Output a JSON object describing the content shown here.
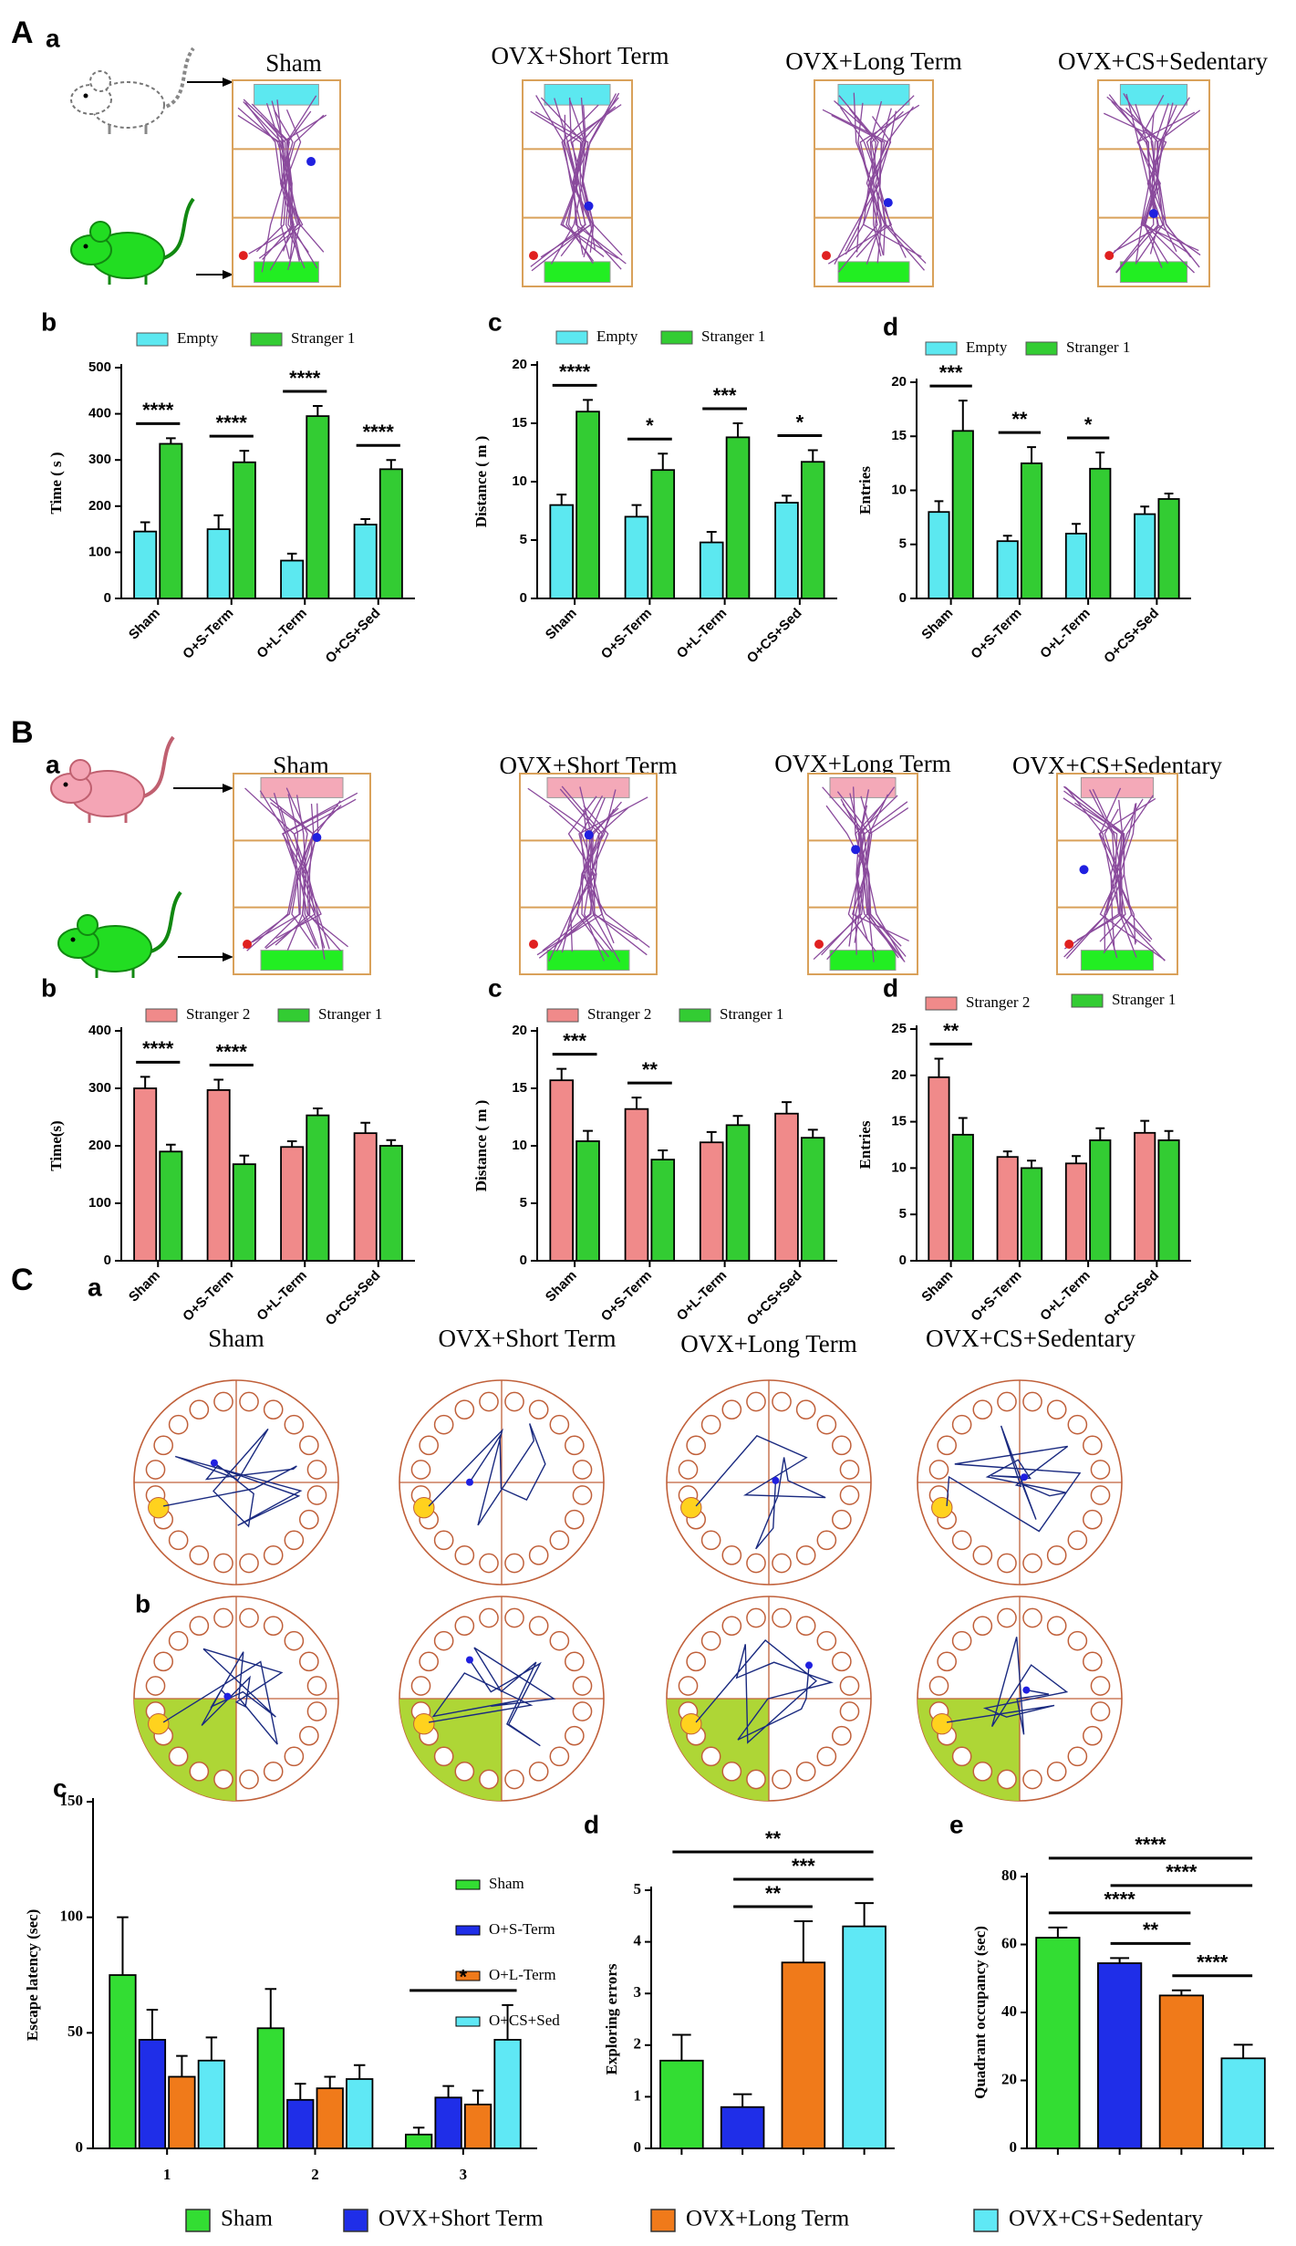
{
  "figure": {
    "sections": [
      {
        "label": "A",
        "sub": "a",
        "titles": [
          "Sham",
          "OVX+Short Term",
          "OVX+Long Term",
          "OVX+CS+Sedentary"
        ]
      },
      {
        "label": "B",
        "sub": "a",
        "titles": [
          "Sham",
          "OVX+Short Term",
          "OVX+Long Term",
          "OVX+CS+Sedentary"
        ]
      },
      {
        "label": "C",
        "sub": "a",
        "sub2": "b",
        "titles": [
          "Sham",
          "OVX+Short Term",
          "OVX+Long Term",
          "OVX+CS+Sedentary"
        ]
      }
    ],
    "legend": [
      {
        "label": "Sham",
        "color": "#33dd33"
      },
      {
        "label": "OVX+Short Term",
        "color": "#1f2ee8"
      },
      {
        "label": "OVX+Long Term",
        "color": "#f07a1a"
      },
      {
        "label": "OVX+CS+Sedentary",
        "color": "#5fe8f5"
      }
    ]
  },
  "chart_data": [
    {
      "type": "bar",
      "panel": "b",
      "ylabel": "Time ( s )",
      "categories": [
        "Sham",
        "O+S-Term",
        "O+L-Term",
        "O+CS+Sed"
      ],
      "series": [
        {
          "name": "Empty",
          "color": "#5ce8f0",
          "values": [
            145,
            150,
            82,
            160
          ],
          "errors": [
            20,
            30,
            15,
            12
          ]
        },
        {
          "name": "Stranger 1",
          "color": "#33cc33",
          "values": [
            335,
            295,
            395,
            280
          ],
          "errors": [
            12,
            25,
            22,
            20
          ]
        }
      ],
      "ylim": [
        0,
        500
      ],
      "yticks": [
        0,
        100,
        200,
        300,
        400,
        500
      ],
      "annotations": [
        {
          "text": "****",
          "category": 0
        },
        {
          "text": "****",
          "category": 1
        },
        {
          "text": "****",
          "category": 2
        },
        {
          "text": "****",
          "category": 3
        }
      ]
    },
    {
      "type": "bar",
      "panel": "c",
      "ylabel": "Distance ( m )",
      "categories": [
        "Sham",
        "O+S-Term",
        "O+L-Term",
        "O+CS+Sed"
      ],
      "series": [
        {
          "name": "Empty",
          "color": "#5ce8f0",
          "values": [
            8,
            7,
            4.8,
            8.2
          ],
          "errors": [
            0.9,
            1,
            0.9,
            0.6
          ]
        },
        {
          "name": "Stranger 1",
          "color": "#33cc33",
          "values": [
            16,
            11,
            13.8,
            11.7
          ],
          "errors": [
            1,
            1.4,
            1.2,
            1
          ]
        }
      ],
      "ylim": [
        0,
        20
      ],
      "yticks": [
        0,
        5,
        10,
        15,
        20
      ],
      "annotations": [
        {
          "text": "****",
          "category": 0
        },
        {
          "text": "*",
          "category": 1
        },
        {
          "text": "***",
          "category": 2
        },
        {
          "text": "*",
          "category": 3
        }
      ]
    },
    {
      "type": "bar",
      "panel": "d",
      "ylabel": "Entries",
      "categories": [
        "Sham",
        "O+S-Term",
        "O+L-Term",
        "O+CS+Sed"
      ],
      "series": [
        {
          "name": "Empty",
          "color": "#5ce8f0",
          "values": [
            8,
            5.3,
            6,
            7.8
          ],
          "errors": [
            1,
            0.5,
            0.9,
            0.7
          ]
        },
        {
          "name": "Stranger 1",
          "color": "#33cc33",
          "values": [
            15.5,
            12.5,
            12,
            9.2
          ],
          "errors": [
            2.8,
            1.5,
            1.5,
            0.5
          ]
        }
      ],
      "ylim": [
        0,
        20
      ],
      "yticks": [
        0,
        5,
        10,
        15,
        20
      ],
      "annotations": [
        {
          "text": "***",
          "category": 0
        },
        {
          "text": "**",
          "category": 1
        },
        {
          "text": "*",
          "category": 2
        }
      ]
    },
    {
      "type": "bar",
      "panel": "b",
      "ylabel": "Time(s)",
      "categories": [
        "Sham",
        "O+S-Term",
        "O+L-Term",
        "O+CS+Sed"
      ],
      "series": [
        {
          "name": "Stranger 2",
          "color": "#f08a8a",
          "values": [
            300,
            297,
            198,
            222
          ],
          "errors": [
            20,
            18,
            10,
            18
          ]
        },
        {
          "name": "Stranger 1",
          "color": "#33cc33",
          "values": [
            190,
            168,
            253,
            200
          ],
          "errors": [
            12,
            15,
            12,
            10
          ]
        }
      ],
      "ylim": [
        0,
        400
      ],
      "yticks": [
        0,
        100,
        200,
        300,
        400
      ],
      "annotations": [
        {
          "text": "****",
          "category": 0
        },
        {
          "text": "****",
          "category": 1
        }
      ]
    },
    {
      "type": "bar",
      "panel": "c",
      "ylabel": "Distance ( m )",
      "categories": [
        "Sham",
        "O+S-Term",
        "O+L-Term",
        "O+CS+Sed"
      ],
      "series": [
        {
          "name": "Stranger 2",
          "color": "#f08a8a",
          "values": [
            15.7,
            13.2,
            10.3,
            12.8
          ],
          "errors": [
            1,
            1,
            0.9,
            1
          ]
        },
        {
          "name": "Stranger 1",
          "color": "#33cc33",
          "values": [
            10.4,
            8.8,
            11.8,
            10.7
          ],
          "errors": [
            0.9,
            0.8,
            0.8,
            0.7
          ]
        }
      ],
      "ylim": [
        0,
        20
      ],
      "yticks": [
        0,
        5,
        10,
        15,
        20
      ],
      "annotations": [
        {
          "text": "***",
          "category": 0
        },
        {
          "text": "**",
          "category": 1
        }
      ]
    },
    {
      "type": "bar",
      "panel": "d",
      "ylabel": "Entries",
      "categories": [
        "Sham",
        "O+S-Term",
        "O+L-Term",
        "O+CS+Sed"
      ],
      "series": [
        {
          "name": "Stranger 2",
          "color": "#f08a8a",
          "values": [
            19.8,
            11.2,
            10.5,
            13.8
          ],
          "errors": [
            2,
            0.6,
            0.8,
            1.3
          ]
        },
        {
          "name": "Stranger 1",
          "color": "#33cc33",
          "values": [
            13.6,
            10,
            13,
            13
          ],
          "errors": [
            1.8,
            0.8,
            1.3,
            1
          ]
        }
      ],
      "ylim": [
        0,
        25
      ],
      "yticks": [
        0,
        5,
        10,
        15,
        20,
        25
      ],
      "annotations": [
        {
          "text": "**",
          "category": 0
        }
      ]
    },
    {
      "type": "bar",
      "panel": "c",
      "ylabel": "Escape latency (sec)",
      "categories": [
        "1",
        "2",
        "3"
      ],
      "series": [
        {
          "name": "Sham",
          "color": "#33dd33",
          "values": [
            75,
            52,
            6
          ],
          "errors": [
            25,
            17,
            3
          ]
        },
        {
          "name": "O+S-Term",
          "color": "#1f2ee8",
          "values": [
            47,
            21,
            22
          ],
          "errors": [
            13,
            7,
            5
          ]
        },
        {
          "name": "O+L-Term",
          "color": "#f07a1a",
          "values": [
            31,
            26,
            19
          ],
          "errors": [
            9,
            5,
            6
          ]
        },
        {
          "name": "O+CS+Sed",
          "color": "#5fe8f5",
          "values": [
            38,
            30,
            47
          ],
          "errors": [
            10,
            6,
            15
          ]
        }
      ],
      "ylim": [
        0,
        150
      ],
      "yticks": [
        0,
        50,
        100,
        150
      ],
      "annotations": [
        {
          "text": "*",
          "category": 2
        }
      ]
    },
    {
      "type": "bar",
      "panel": "d",
      "ylabel": "Exploring errors",
      "categories": [
        null,
        null,
        null,
        null
      ],
      "values": [
        1.7,
        0.8,
        3.6,
        4.3
      ],
      "errors": [
        0.5,
        0.25,
        0.8,
        0.45
      ],
      "colors": [
        "#33dd33",
        "#1f2ee8",
        "#f07a1a",
        "#5fe8f5"
      ],
      "ylim": [
        0,
        5
      ],
      "yticks": [
        0,
        1,
        2,
        3,
        4,
        5
      ],
      "annotations": [
        {
          "text": "**",
          "from": 0,
          "to": 3
        },
        {
          "text": "***",
          "from": 1,
          "to": 3
        },
        {
          "text": "**",
          "from": 1,
          "to": 2
        }
      ]
    },
    {
      "type": "bar",
      "panel": "e",
      "ylabel": "Quadrant occupancy (sec)",
      "categories": [
        null,
        null,
        null,
        null
      ],
      "values": [
        62,
        54.5,
        45,
        26.5
      ],
      "errors": [
        3,
        1.5,
        1.5,
        4
      ],
      "colors": [
        "#33dd33",
        "#1f2ee8",
        "#f07a1a",
        "#5fe8f5"
      ],
      "ylim": [
        0,
        80
      ],
      "yticks": [
        0,
        20,
        40,
        60,
        80
      ],
      "annotations": [
        {
          "text": "****",
          "from": 0,
          "to": 3
        },
        {
          "text": "****",
          "from": 0,
          "to": 2
        },
        {
          "text": "**",
          "from": 1,
          "to": 2
        },
        {
          "text": "****",
          "from": 1,
          "to": 3
        },
        {
          "text": "****",
          "from": 2,
          "to": 3
        }
      ]
    }
  ]
}
